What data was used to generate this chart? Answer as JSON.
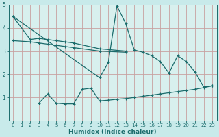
{
  "xlabel": "Humidex (Indice chaleur)",
  "xlim": [
    -0.5,
    23.5
  ],
  "ylim": [
    0,
    5
  ],
  "xticks": [
    0,
    1,
    2,
    3,
    4,
    5,
    6,
    7,
    8,
    9,
    10,
    11,
    12,
    13,
    14,
    15,
    16,
    17,
    18,
    19,
    20,
    21,
    22,
    23
  ],
  "yticks": [
    1,
    2,
    3,
    4,
    5
  ],
  "background_color": "#c8eaea",
  "plot_bg_color": "#d8f0ee",
  "line_color": "#1a6b6b",
  "grid_color": "#c0d8d8",
  "series": [
    {
      "x": [
        0,
        2,
        3,
        4,
        5,
        6,
        7,
        10,
        13
      ],
      "y": [
        4.5,
        3.5,
        3.55,
        3.5,
        3.45,
        3.4,
        3.35,
        3.1,
        3.0
      ]
    },
    {
      "x": [
        0,
        2,
        3,
        4,
        5,
        6,
        7,
        10,
        13
      ],
      "y": [
        3.45,
        3.4,
        3.35,
        3.3,
        3.25,
        3.2,
        3.15,
        3.0,
        2.95
      ]
    },
    {
      "x": [
        0,
        10,
        11,
        12,
        13,
        14,
        15,
        16,
        17,
        18,
        19,
        20,
        21,
        22,
        23
      ],
      "y": [
        4.5,
        1.85,
        2.5,
        4.95,
        4.2,
        3.05,
        2.95,
        2.8,
        2.55,
        2.05,
        2.8,
        2.55,
        2.1,
        1.45,
        1.5
      ]
    },
    {
      "x": [
        3,
        4,
        5,
        6,
        7,
        8,
        9,
        10,
        11,
        12,
        13,
        14,
        15,
        16,
        17,
        18,
        19,
        20,
        21,
        22,
        23
      ],
      "y": [
        0.75,
        1.15,
        0.75,
        0.72,
        0.72,
        1.35,
        1.4,
        0.85,
        0.88,
        0.92,
        0.95,
        1.0,
        1.05,
        1.1,
        1.15,
        1.2,
        1.25,
        1.3,
        1.35,
        1.42,
        1.5
      ]
    }
  ]
}
